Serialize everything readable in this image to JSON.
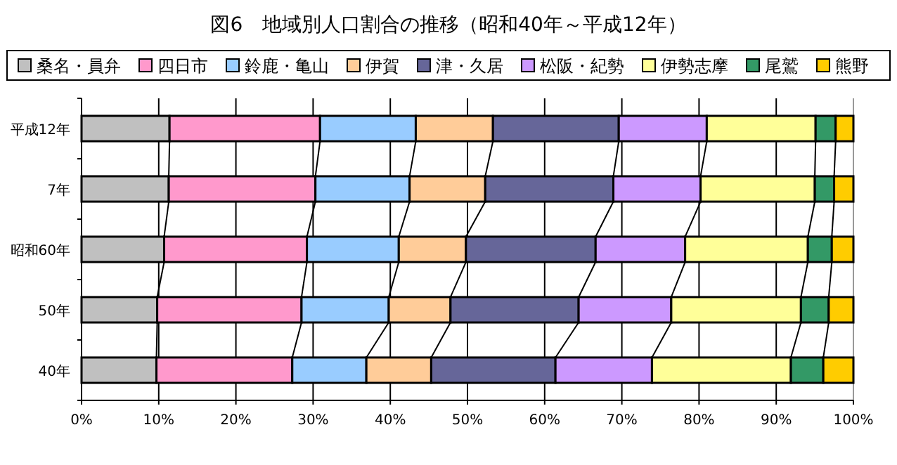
{
  "chart_data": {
    "type": "bar",
    "orientation": "horizontal",
    "stacked": true,
    "title": "図6　地域別人口割合の推移（昭和40年～平成12年）",
    "categories": [
      "平成12年",
      "7年",
      "昭和60年",
      "50年",
      "40年"
    ],
    "series": [
      {
        "name": "桑名・員弁",
        "color": "#c0c0c0",
        "values": [
          11.4,
          11.3,
          10.7,
          9.8,
          9.7
        ]
      },
      {
        "name": "四日市",
        "color": "#ff99cc",
        "values": [
          19.5,
          19.0,
          18.5,
          18.7,
          17.6
        ]
      },
      {
        "name": "鈴鹿・亀山",
        "color": "#99ccff",
        "values": [
          12.4,
          12.2,
          11.9,
          11.3,
          9.6
        ]
      },
      {
        "name": "伊賀",
        "color": "#ffcc99",
        "values": [
          10.0,
          9.8,
          8.7,
          8.0,
          8.4
        ]
      },
      {
        "name": "津・久居",
        "color": "#666699",
        "values": [
          16.3,
          16.6,
          16.8,
          16.6,
          16.1
        ]
      },
      {
        "name": "松阪・紀勢",
        "color": "#cc99ff",
        "values": [
          11.4,
          11.3,
          11.6,
          12.0,
          12.5
        ]
      },
      {
        "name": "伊勢志摩",
        "color": "#ffff99",
        "values": [
          14.1,
          14.8,
          15.9,
          16.8,
          18.0
        ]
      },
      {
        "name": "尾鷲",
        "color": "#339966",
        "values": [
          2.6,
          2.5,
          3.1,
          3.6,
          4.2
        ]
      },
      {
        "name": "熊野",
        "color": "#ffcc00",
        "values": [
          2.3,
          2.5,
          2.8,
          3.2,
          3.9
        ]
      }
    ],
    "xlim": [
      0,
      100
    ],
    "xticks": [
      {
        "value": 0,
        "label": "0%"
      },
      {
        "value": 10,
        "label": "10%"
      },
      {
        "value": 20,
        "label": "20%"
      },
      {
        "value": 30,
        "label": "30%"
      },
      {
        "value": 40,
        "label": "40%"
      },
      {
        "value": 50,
        "label": "50%"
      },
      {
        "value": 60,
        "label": "60%"
      },
      {
        "value": 70,
        "label": "70%"
      },
      {
        "value": 80,
        "label": "80%"
      },
      {
        "value": 90,
        "label": "90%"
      },
      {
        "value": 100,
        "label": "100%"
      }
    ],
    "grid": "x",
    "legend": "top"
  }
}
